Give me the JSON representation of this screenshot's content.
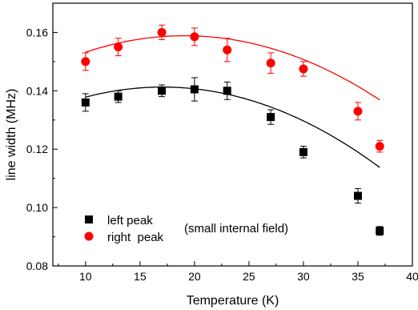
{
  "chart_data": {
    "type": "scatter",
    "title": "",
    "xlabel": "Temperature (K)",
    "ylabel": "line width (MHz)",
    "xlim": [
      7,
      40
    ],
    "ylim": [
      0.08,
      0.17
    ],
    "xticks": [
      10,
      15,
      20,
      25,
      30,
      35,
      40
    ],
    "yticks": [
      0.08,
      0.1,
      0.12,
      0.14,
      0.16
    ],
    "ytick_labels": [
      "0.08",
      "0.10",
      "0.12",
      "0.14",
      "0.16"
    ],
    "annotation": "(small internal field)",
    "legend_position": "bottom-left",
    "series": [
      {
        "name": "left peak",
        "marker": "square",
        "color": "#000000",
        "x": [
          10,
          13,
          17,
          20,
          23,
          27,
          30,
          35,
          37
        ],
        "y": [
          0.136,
          0.138,
          0.14,
          0.1405,
          0.14,
          0.131,
          0.119,
          0.104,
          0.092
        ],
        "err": [
          0.003,
          0.002,
          0.002,
          0.004,
          0.003,
          0.0025,
          0.002,
          0.0025,
          0.0015
        ],
        "fit_curve": {
          "coeffs": [
            0.1211,
            0.002365,
            -6.93e-05
          ],
          "x_range": [
            10,
            37
          ]
        }
      },
      {
        "name": "right  peak",
        "marker": "circle",
        "color": "#ff0000",
        "x": [
          10,
          13,
          17,
          20,
          23,
          27,
          30,
          35,
          37
        ],
        "y": [
          0.15,
          0.155,
          0.16,
          0.1585,
          0.154,
          0.1495,
          0.1475,
          0.133,
          0.121
        ],
        "err": [
          0.003,
          0.003,
          0.0025,
          0.003,
          0.004,
          0.0035,
          0.0025,
          0.003,
          0.002
        ],
        "fit_curve": {
          "coeffs": [
            0.1339,
            0.002615,
            -6.85e-05
          ],
          "x_range": [
            10,
            37
          ]
        }
      }
    ]
  }
}
